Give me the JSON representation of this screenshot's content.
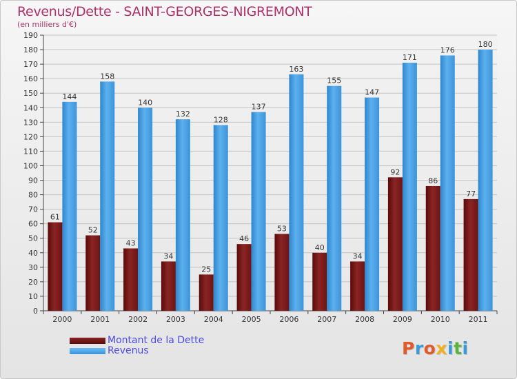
{
  "chart_data": {
    "type": "bar",
    "title": "Revenus/Dette - SAINT-GEORGES-NIGREMONT",
    "subtitle": "(en milliers d'€)",
    "xlabel": "",
    "ylabel": "",
    "ylim": [
      0,
      190
    ],
    "yticks": [
      0,
      10,
      20,
      30,
      40,
      50,
      60,
      70,
      80,
      90,
      100,
      110,
      120,
      130,
      140,
      150,
      160,
      170,
      180,
      190
    ],
    "grid": true,
    "legend_position": "bottom-left",
    "categories": [
      "2000",
      "2001",
      "2002",
      "2003",
      "2004",
      "2005",
      "2006",
      "2007",
      "2008",
      "2009",
      "2010",
      "2011"
    ],
    "series": [
      {
        "name": "Montant de la Dette",
        "color": "#7a1a1a",
        "values": [
          61,
          52,
          43,
          34,
          25,
          46,
          53,
          40,
          34,
          92,
          86,
          77
        ]
      },
      {
        "name": "Revenus",
        "color": "#4aa3e6",
        "values": [
          144,
          158,
          140,
          132,
          128,
          137,
          163,
          155,
          147,
          171,
          176,
          180
        ]
      }
    ]
  },
  "logo": {
    "letters": [
      {
        "ch": "P",
        "color": "#e05a2a"
      },
      {
        "ch": "r",
        "color": "#3a9ad9"
      },
      {
        "ch": "o",
        "color": "#e05a2a"
      },
      {
        "ch": "x",
        "color": "#f0b020"
      },
      {
        "ch": "i",
        "color": "#3a9ad9"
      },
      {
        "ch": "t",
        "color": "#5ab43a"
      },
      {
        "ch": "i",
        "color": "#3a9ad9"
      }
    ]
  }
}
